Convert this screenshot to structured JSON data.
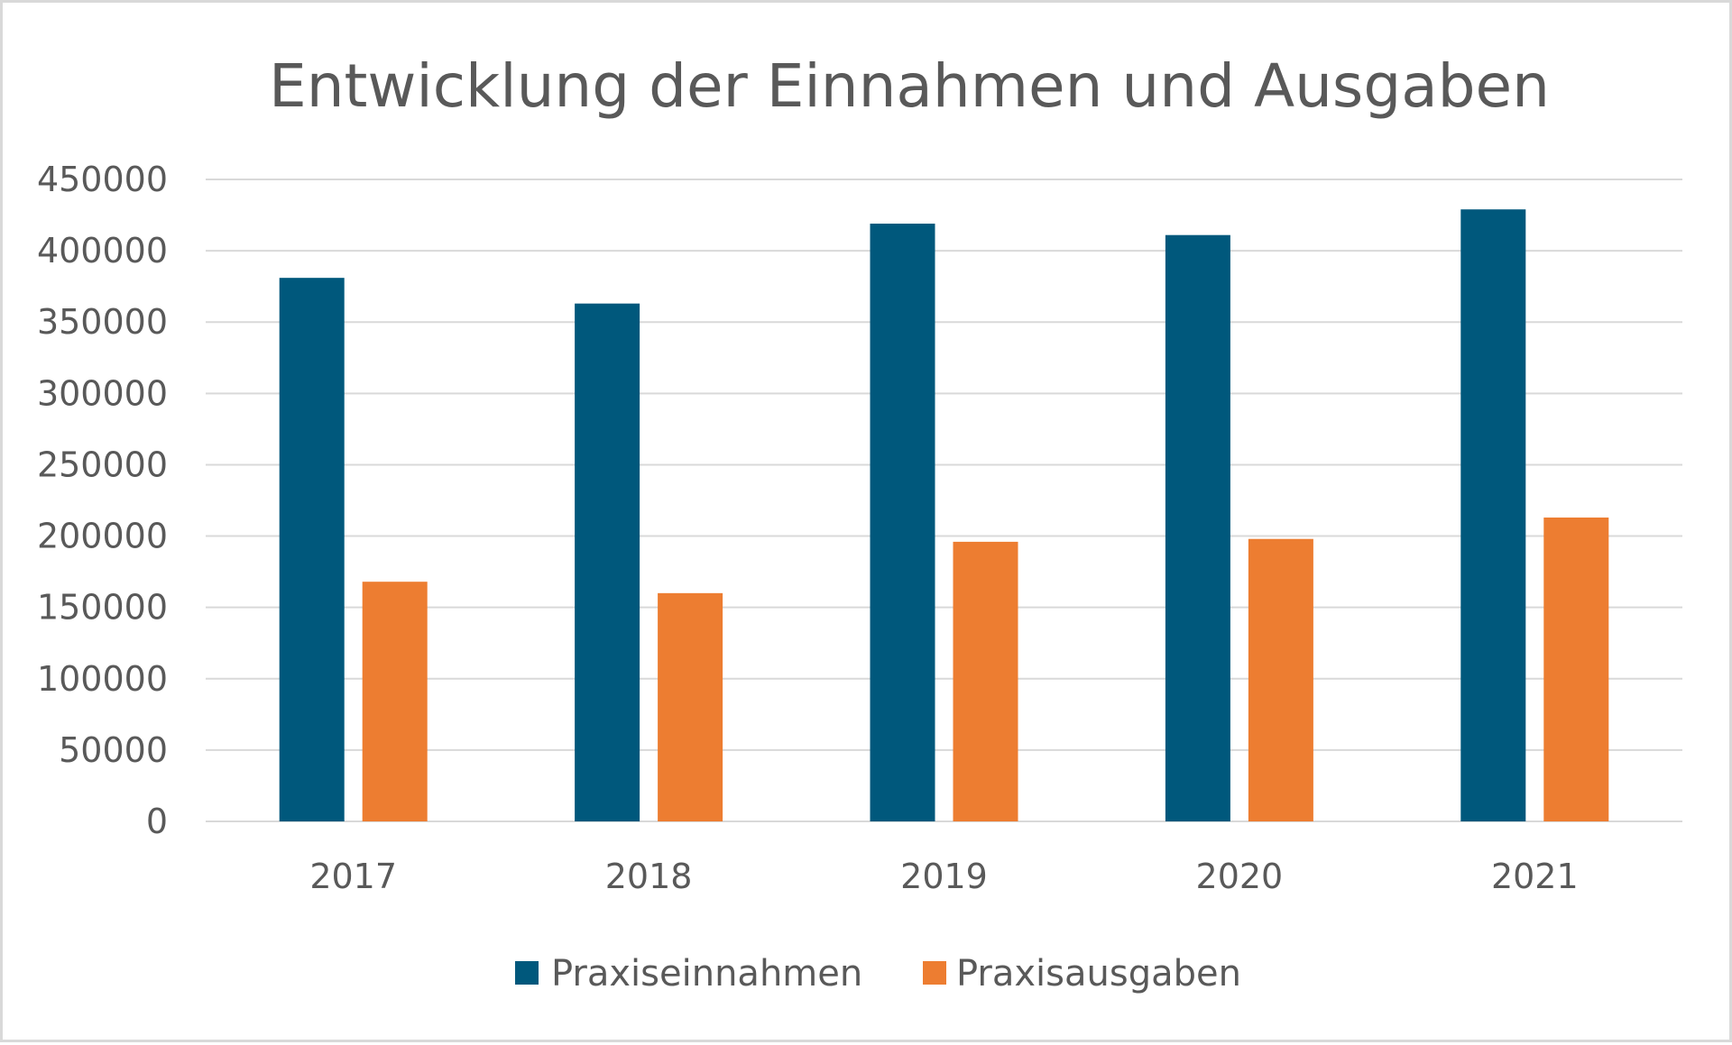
{
  "chart_data": {
    "type": "bar",
    "title": "Entwicklung der Einnahmen und Ausgaben",
    "xlabel": "",
    "ylabel": "",
    "categories": [
      "2017",
      "2018",
      "2019",
      "2020",
      "2021"
    ],
    "series": [
      {
        "name": "Praxiseinnahmen",
        "color": "#00587c",
        "values": [
          381000,
          363000,
          419000,
          411000,
          429000
        ]
      },
      {
        "name": "Praxisausgaben",
        "color": "#ed7d31",
        "values": [
          168000,
          160000,
          196000,
          198000,
          213000
        ]
      }
    ],
    "ylim": [
      0,
      450000
    ],
    "ytick_step": 50000,
    "yticks": [
      "0",
      "50000",
      "100000",
      "150000",
      "200000",
      "250000",
      "300000",
      "350000",
      "400000",
      "450000"
    ],
    "grid": true,
    "legend_position": "bottom"
  }
}
